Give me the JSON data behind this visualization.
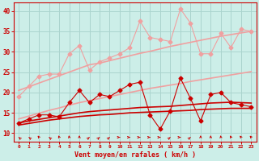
{
  "xlabel": "Vent moyen/en rafales ( km/h )",
  "bg_color": "#cceee8",
  "grid_color": "#aad4ce",
  "x_ticks": [
    0,
    1,
    2,
    3,
    4,
    5,
    6,
    7,
    8,
    9,
    10,
    11,
    12,
    13,
    14,
    15,
    16,
    17,
    18,
    19,
    20,
    21,
    22,
    23
  ],
  "ylim": [
    8,
    42
  ],
  "xlim": [
    -0.5,
    23.5
  ],
  "yticks": [
    10,
    15,
    20,
    25,
    30,
    35,
    40
  ],
  "line1_x": [
    0,
    1,
    2,
    3,
    4,
    5,
    6,
    7,
    8,
    9,
    10,
    11,
    12,
    13,
    14,
    15,
    16,
    17,
    18,
    19,
    20,
    21,
    22,
    23
  ],
  "line1_y": [
    19.0,
    21.5,
    24.0,
    24.5,
    24.5,
    29.5,
    31.5,
    25.5,
    27.5,
    28.5,
    29.5,
    31.0,
    37.5,
    33.5,
    33.0,
    32.5,
    40.5,
    37.0,
    29.5,
    29.5,
    34.5,
    31.0,
    35.5,
    35.0
  ],
  "line1_color": "#f0a0a0",
  "line2_y": [
    20.5,
    21.4,
    22.3,
    23.2,
    24.1,
    25.0,
    25.9,
    26.8,
    27.2,
    27.8,
    28.4,
    29.0,
    29.6,
    30.1,
    30.7,
    31.3,
    31.8,
    32.3,
    32.8,
    33.3,
    33.8,
    34.2,
    34.6,
    35.0
  ],
  "line2_color": "#f0a0a0",
  "line3_y": [
    13.5,
    14.2,
    14.9,
    15.6,
    16.2,
    16.9,
    17.5,
    18.0,
    18.5,
    19.0,
    19.5,
    20.0,
    20.5,
    21.0,
    21.4,
    21.8,
    22.2,
    22.7,
    23.1,
    23.5,
    23.9,
    24.3,
    24.7,
    25.1
  ],
  "line3_color": "#f0a0a0",
  "line4_x": [
    0,
    1,
    2,
    3,
    4,
    5,
    6,
    7,
    8,
    9,
    10,
    11,
    12,
    13,
    14,
    15,
    16,
    17,
    18,
    19,
    20,
    21,
    22,
    23
  ],
  "line4_y": [
    12.5,
    13.5,
    14.5,
    14.5,
    14.0,
    17.5,
    20.5,
    17.5,
    19.5,
    19.0,
    20.5,
    22.0,
    22.5,
    14.5,
    11.0,
    15.5,
    23.5,
    18.5,
    13.0,
    19.5,
    20.0,
    17.5,
    17.0,
    16.5
  ],
  "line4_color": "#cc0000",
  "line5_y": [
    12.5,
    13.0,
    13.4,
    13.8,
    14.2,
    14.6,
    15.0,
    15.3,
    15.5,
    15.7,
    15.9,
    16.1,
    16.3,
    16.4,
    16.5,
    16.6,
    16.8,
    17.0,
    17.2,
    17.4,
    17.5,
    17.6,
    17.5,
    17.4
  ],
  "line5_color": "#cc0000",
  "line6_y": [
    12.0,
    12.4,
    12.8,
    13.2,
    13.5,
    13.8,
    14.1,
    14.3,
    14.5,
    14.6,
    14.8,
    15.0,
    15.1,
    15.2,
    15.3,
    15.4,
    15.5,
    15.6,
    15.8,
    15.9,
    16.0,
    16.1,
    16.1,
    16.1
  ],
  "line6_color": "#cc0000",
  "arrow_angles": [
    225,
    225,
    210,
    225,
    200,
    190,
    180,
    135,
    135,
    135,
    90,
    90,
    90,
    90,
    90,
    135,
    90,
    135,
    180,
    180,
    190,
    200,
    210,
    215
  ]
}
